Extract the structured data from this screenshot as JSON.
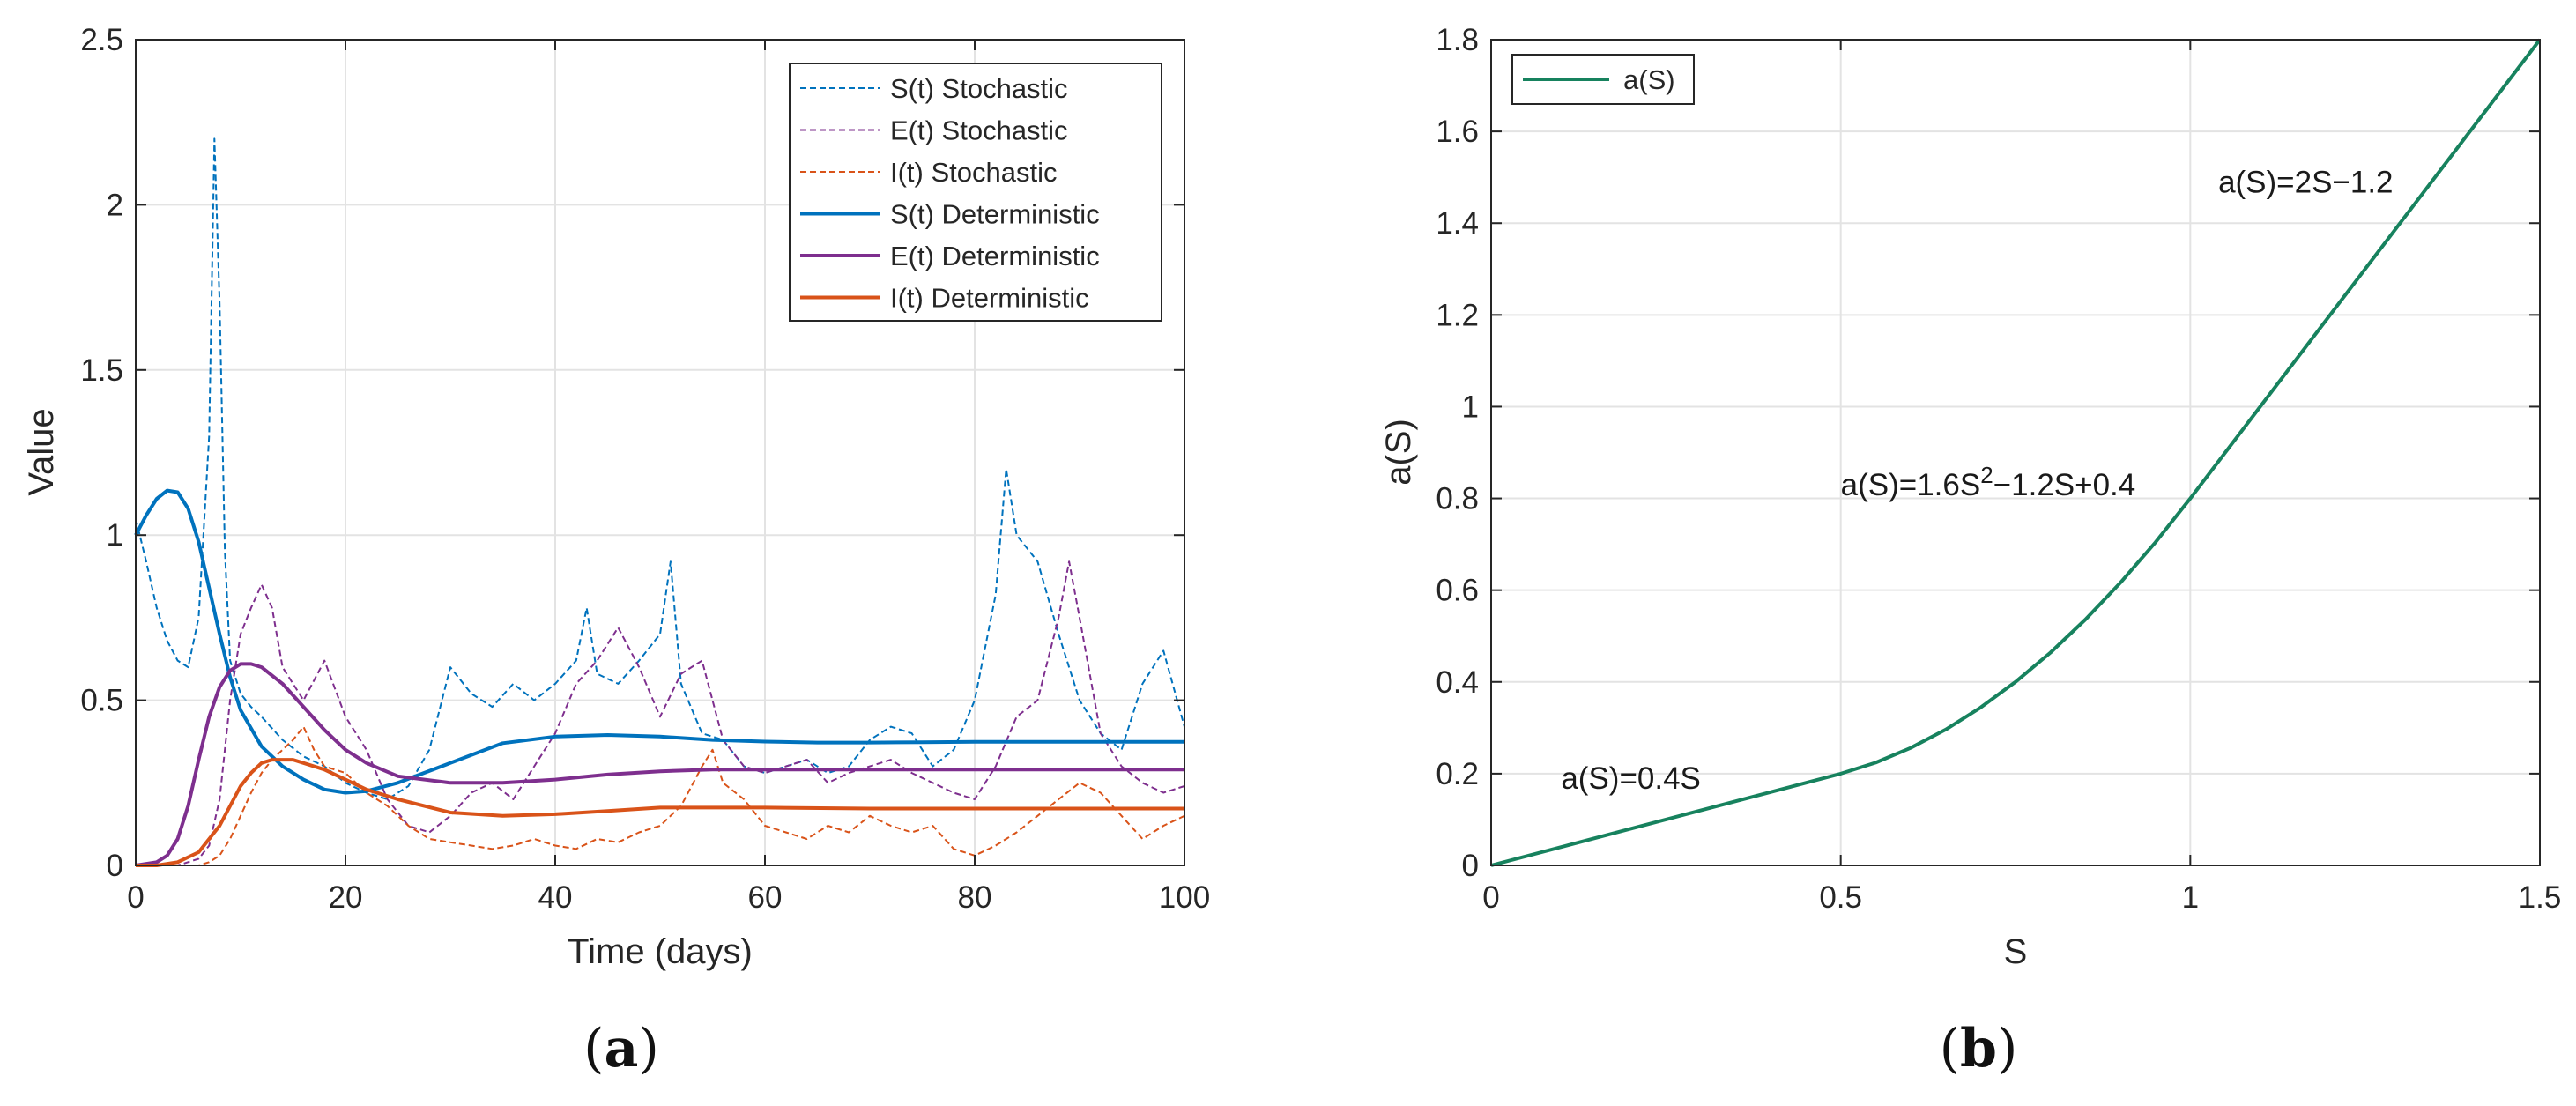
{
  "chart_data": [
    {
      "type": "line",
      "caption": "(a)",
      "caption_parts": [
        "(",
        "a",
        ")"
      ],
      "xlabel": "Time (days)",
      "ylabel": "Value",
      "xlim": [
        0,
        100
      ],
      "ylim": [
        0,
        2.5
      ],
      "xticks": [
        0,
        20,
        40,
        60,
        80,
        100
      ],
      "yticks": [
        0,
        0.5,
        1,
        1.5,
        2,
        2.5
      ],
      "xtick_labels": [
        "0",
        "20",
        "40",
        "60",
        "80",
        "100"
      ],
      "ytick_labels": [
        "0",
        "0.5",
        "1",
        "1.5",
        "2",
        "2.5"
      ],
      "grid": true,
      "legend_position": "top-right",
      "series": [
        {
          "name": "S(t) Stochastic",
          "style": "dashed",
          "color": "#0072BD",
          "x": [
            0,
            1,
            2,
            3,
            4,
            5,
            6,
            7,
            7.5,
            8,
            8.5,
            9,
            10,
            11,
            12,
            14,
            16,
            18,
            20,
            22,
            24,
            26,
            28,
            30,
            32,
            34,
            36,
            38,
            40,
            42,
            43,
            44,
            46,
            48,
            50,
            51,
            52,
            54,
            56,
            58,
            60,
            62,
            64,
            66,
            68,
            70,
            72,
            74,
            76,
            78,
            80,
            82,
            83,
            84,
            86,
            88,
            90,
            92,
            94,
            96,
            98,
            100
          ],
          "y": [
            1.05,
            0.92,
            0.78,
            0.68,
            0.62,
            0.6,
            0.75,
            1.3,
            2.2,
            1.7,
            0.95,
            0.62,
            0.52,
            0.48,
            0.45,
            0.38,
            0.33,
            0.3,
            0.25,
            0.22,
            0.2,
            0.24,
            0.35,
            0.6,
            0.52,
            0.48,
            0.55,
            0.5,
            0.55,
            0.62,
            0.78,
            0.58,
            0.55,
            0.62,
            0.7,
            0.92,
            0.55,
            0.4,
            0.38,
            0.3,
            0.28,
            0.3,
            0.32,
            0.28,
            0.3,
            0.38,
            0.42,
            0.4,
            0.3,
            0.35,
            0.5,
            0.82,
            1.2,
            1.0,
            0.92,
            0.7,
            0.5,
            0.4,
            0.35,
            0.55,
            0.65,
            0.42
          ]
        },
        {
          "name": "E(t) Stochastic",
          "style": "dashed",
          "color": "#7E2F8E",
          "x": [
            0,
            4,
            6,
            7,
            8,
            9,
            10,
            11,
            12,
            13,
            14,
            16,
            18,
            20,
            22,
            24,
            26,
            28,
            30,
            32,
            34,
            36,
            38,
            40,
            42,
            44,
            46,
            48,
            50,
            52,
            54,
            56,
            58,
            60,
            62,
            64,
            66,
            68,
            70,
            72,
            74,
            76,
            78,
            80,
            82,
            84,
            86,
            88,
            89,
            90,
            92,
            94,
            96,
            98,
            100
          ],
          "y": [
            0.0,
            0.0,
            0.02,
            0.06,
            0.2,
            0.5,
            0.7,
            0.78,
            0.85,
            0.78,
            0.6,
            0.5,
            0.62,
            0.45,
            0.35,
            0.2,
            0.12,
            0.1,
            0.15,
            0.22,
            0.25,
            0.2,
            0.3,
            0.4,
            0.55,
            0.62,
            0.72,
            0.6,
            0.45,
            0.58,
            0.62,
            0.38,
            0.3,
            0.28,
            0.3,
            0.32,
            0.25,
            0.28,
            0.3,
            0.32,
            0.28,
            0.25,
            0.22,
            0.2,
            0.3,
            0.45,
            0.5,
            0.75,
            0.92,
            0.75,
            0.4,
            0.3,
            0.25,
            0.22,
            0.24
          ]
        },
        {
          "name": "I(t) Stochastic",
          "style": "dashed",
          "color": "#D95319",
          "x": [
            0,
            6,
            7,
            8,
            9,
            10,
            11,
            12,
            13,
            14,
            15,
            16,
            17,
            18,
            20,
            22,
            24,
            26,
            28,
            30,
            32,
            34,
            36,
            38,
            40,
            42,
            44,
            46,
            48,
            50,
            52,
            54,
            55,
            56,
            58,
            60,
            62,
            64,
            66,
            68,
            70,
            72,
            74,
            76,
            78,
            80,
            82,
            84,
            86,
            88,
            90,
            92,
            94,
            96,
            98,
            100
          ],
          "y": [
            0.0,
            0.0,
            0.01,
            0.03,
            0.08,
            0.15,
            0.22,
            0.28,
            0.32,
            0.35,
            0.38,
            0.42,
            0.35,
            0.3,
            0.28,
            0.22,
            0.18,
            0.12,
            0.08,
            0.07,
            0.06,
            0.05,
            0.06,
            0.08,
            0.06,
            0.05,
            0.08,
            0.07,
            0.1,
            0.12,
            0.18,
            0.3,
            0.35,
            0.25,
            0.2,
            0.12,
            0.1,
            0.08,
            0.12,
            0.1,
            0.15,
            0.12,
            0.1,
            0.12,
            0.05,
            0.03,
            0.06,
            0.1,
            0.15,
            0.2,
            0.25,
            0.22,
            0.15,
            0.08,
            0.12,
            0.15
          ]
        },
        {
          "name": "S(t) Deterministic",
          "style": "solid",
          "color": "#0072BD",
          "x": [
            0,
            1,
            2,
            3,
            4,
            5,
            6,
            7,
            8,
            9,
            10,
            12,
            14,
            16,
            18,
            20,
            22,
            25,
            30,
            35,
            40,
            45,
            50,
            55,
            60,
            65,
            70,
            75,
            80,
            90,
            100
          ],
          "y": [
            1.0,
            1.06,
            1.11,
            1.135,
            1.13,
            1.08,
            0.98,
            0.84,
            0.7,
            0.57,
            0.47,
            0.36,
            0.3,
            0.26,
            0.23,
            0.22,
            0.225,
            0.25,
            0.31,
            0.37,
            0.39,
            0.395,
            0.39,
            0.38,
            0.375,
            0.372,
            0.372,
            0.373,
            0.374,
            0.374,
            0.374
          ]
        },
        {
          "name": "E(t) Deterministic",
          "style": "solid",
          "color": "#7E2F8E",
          "x": [
            0,
            2,
            3,
            4,
            5,
            6,
            7,
            8,
            9,
            10,
            11,
            12,
            14,
            16,
            18,
            20,
            22,
            25,
            30,
            35,
            40,
            45,
            50,
            55,
            60,
            70,
            80,
            90,
            100
          ],
          "y": [
            0.0,
            0.01,
            0.03,
            0.08,
            0.18,
            0.32,
            0.45,
            0.54,
            0.59,
            0.61,
            0.61,
            0.6,
            0.55,
            0.48,
            0.41,
            0.35,
            0.31,
            0.27,
            0.25,
            0.25,
            0.26,
            0.275,
            0.285,
            0.29,
            0.29,
            0.29,
            0.29,
            0.29,
            0.29
          ]
        },
        {
          "name": "I(t) Deterministic",
          "style": "solid",
          "color": "#D95319",
          "x": [
            0,
            2,
            4,
            6,
            8,
            9,
            10,
            11,
            12,
            13,
            14,
            15,
            16,
            18,
            20,
            22,
            25,
            30,
            35,
            40,
            45,
            50,
            55,
            60,
            70,
            80,
            90,
            100
          ],
          "y": [
            0.0,
            0.0,
            0.01,
            0.04,
            0.12,
            0.18,
            0.24,
            0.28,
            0.31,
            0.32,
            0.32,
            0.32,
            0.31,
            0.29,
            0.26,
            0.23,
            0.2,
            0.16,
            0.15,
            0.155,
            0.165,
            0.175,
            0.175,
            0.175,
            0.172,
            0.172,
            0.172,
            0.172
          ]
        }
      ]
    },
    {
      "type": "line",
      "caption": "(b)",
      "caption_parts": [
        "(",
        "b",
        ")"
      ],
      "xlabel": "S",
      "ylabel": "a(S)",
      "xlim": [
        0,
        1.5
      ],
      "ylim": [
        0,
        1.8
      ],
      "xticks": [
        0,
        0.5,
        1,
        1.5
      ],
      "yticks": [
        0,
        0.2,
        0.4,
        0.6,
        0.8,
        1,
        1.2,
        1.4,
        1.6,
        1.8
      ],
      "xtick_labels": [
        "0",
        "0.5",
        "1",
        "1.5"
      ],
      "ytick_labels": [
        "0",
        "0.2",
        "0.4",
        "0.6",
        "0.8",
        "1",
        "1.2",
        "1.4",
        "1.6",
        "1.8"
      ],
      "grid": true,
      "legend_position": "top-left",
      "series": [
        {
          "name": "a(S)",
          "style": "solid",
          "color": "#17825E",
          "x": [
            0,
            0.5,
            0.55,
            0.6,
            0.65,
            0.7,
            0.75,
            0.8,
            0.85,
            0.9,
            0.95,
            1.0,
            1.5
          ],
          "y": [
            0,
            0.2,
            0.224,
            0.256,
            0.296,
            0.344,
            0.4,
            0.464,
            0.536,
            0.616,
            0.704,
            0.8,
            1.8
          ]
        }
      ],
      "annotations": [
        {
          "text": "a(S)=2S−1.2",
          "x": 1.04,
          "y": 1.49
        },
        {
          "text": "a(S)=1.6S",
          "sup": "2",
          "text_after": "−1.2S+0.4",
          "x": 0.5,
          "y": 0.83
        },
        {
          "text": "a(S)=0.4S",
          "x": 0.1,
          "y": 0.19
        }
      ]
    }
  ]
}
